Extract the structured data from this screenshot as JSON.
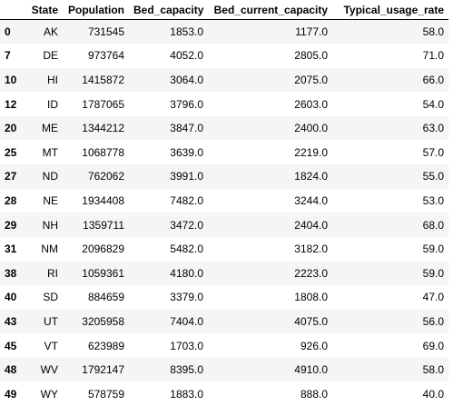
{
  "table": {
    "columns": [
      "",
      "State",
      "Population",
      "Bed_capacity",
      "Bed_current_capacity",
      "Typical_usage_rate"
    ],
    "rows": [
      {
        "index": "0",
        "State": "AK",
        "Population": "731545",
        "Bed_capacity": "1853.0",
        "Bed_current_capacity": "1177.0",
        "Typical_usage_rate": "58.0"
      },
      {
        "index": "7",
        "State": "DE",
        "Population": "973764",
        "Bed_capacity": "4052.0",
        "Bed_current_capacity": "2805.0",
        "Typical_usage_rate": "71.0"
      },
      {
        "index": "10",
        "State": "HI",
        "Population": "1415872",
        "Bed_capacity": "3064.0",
        "Bed_current_capacity": "2075.0",
        "Typical_usage_rate": "66.0"
      },
      {
        "index": "12",
        "State": "ID",
        "Population": "1787065",
        "Bed_capacity": "3796.0",
        "Bed_current_capacity": "2603.0",
        "Typical_usage_rate": "54.0"
      },
      {
        "index": "20",
        "State": "ME",
        "Population": "1344212",
        "Bed_capacity": "3847.0",
        "Bed_current_capacity": "2400.0",
        "Typical_usage_rate": "63.0"
      },
      {
        "index": "25",
        "State": "MT",
        "Population": "1068778",
        "Bed_capacity": "3639.0",
        "Bed_current_capacity": "2219.0",
        "Typical_usage_rate": "57.0"
      },
      {
        "index": "27",
        "State": "ND",
        "Population": "762062",
        "Bed_capacity": "3991.0",
        "Bed_current_capacity": "1824.0",
        "Typical_usage_rate": "55.0"
      },
      {
        "index": "28",
        "State": "NE",
        "Population": "1934408",
        "Bed_capacity": "7482.0",
        "Bed_current_capacity": "3244.0",
        "Typical_usage_rate": "53.0"
      },
      {
        "index": "29",
        "State": "NH",
        "Population": "1359711",
        "Bed_capacity": "3472.0",
        "Bed_current_capacity": "2404.0",
        "Typical_usage_rate": "68.0"
      },
      {
        "index": "31",
        "State": "NM",
        "Population": "2096829",
        "Bed_capacity": "5482.0",
        "Bed_current_capacity": "3182.0",
        "Typical_usage_rate": "59.0"
      },
      {
        "index": "38",
        "State": "RI",
        "Population": "1059361",
        "Bed_capacity": "4180.0",
        "Bed_current_capacity": "2223.0",
        "Typical_usage_rate": "59.0"
      },
      {
        "index": "40",
        "State": "SD",
        "Population": "884659",
        "Bed_capacity": "3379.0",
        "Bed_current_capacity": "1808.0",
        "Typical_usage_rate": "47.0"
      },
      {
        "index": "43",
        "State": "UT",
        "Population": "3205958",
        "Bed_capacity": "7404.0",
        "Bed_current_capacity": "4075.0",
        "Typical_usage_rate": "56.0"
      },
      {
        "index": "45",
        "State": "VT",
        "Population": "623989",
        "Bed_capacity": "1703.0",
        "Bed_current_capacity": "926.0",
        "Typical_usage_rate": "69.0"
      },
      {
        "index": "48",
        "State": "WV",
        "Population": "1792147",
        "Bed_capacity": "8395.0",
        "Bed_current_capacity": "4910.0",
        "Typical_usage_rate": "58.0"
      },
      {
        "index": "49",
        "State": "WY",
        "Population": "578759",
        "Bed_capacity": "1883.0",
        "Bed_current_capacity": "888.0",
        "Typical_usage_rate": "40.0"
      }
    ]
  }
}
